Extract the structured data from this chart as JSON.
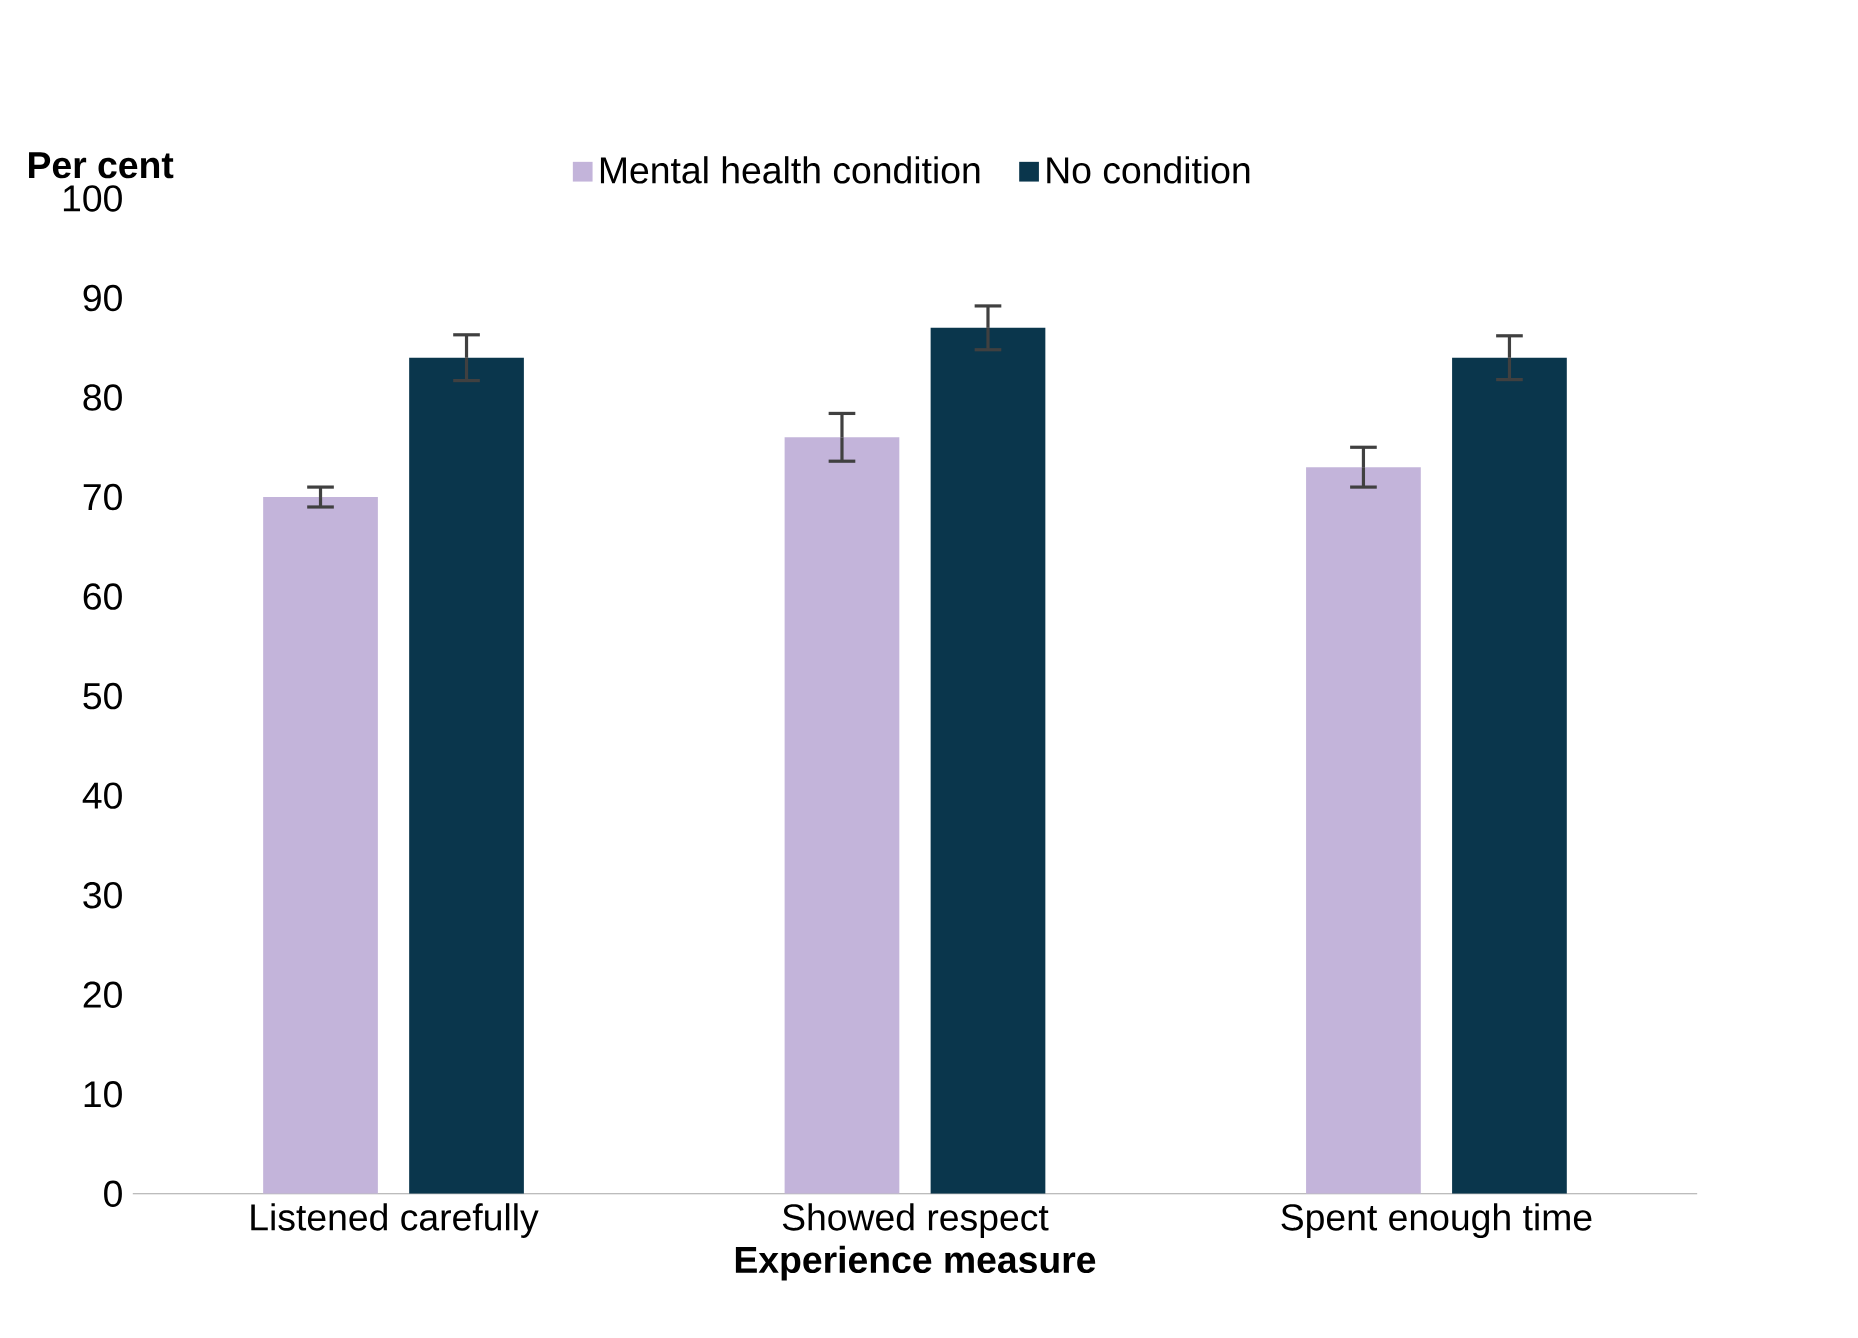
{
  "chart_data": {
    "type": "bar",
    "xlabel": "Experience measure",
    "ylabel": "Per cent",
    "categories": [
      "Listened carefully",
      "Showed respect",
      "Spent enough time"
    ],
    "series": [
      {
        "name": "Mental health condition",
        "color": "#c3b4da",
        "values": [
          70,
          76,
          73
        ],
        "errors": [
          1,
          2.4,
          2
        ]
      },
      {
        "name": "No condition",
        "color": "#0a364c",
        "values": [
          84,
          87,
          84
        ],
        "errors": [
          2.3,
          2.2,
          2.2
        ]
      }
    ],
    "ylim": [
      0,
      100
    ],
    "yticks": [
      0,
      10,
      20,
      30,
      40,
      50,
      60,
      70,
      80,
      90,
      100
    ],
    "grid": false,
    "legend": "top"
  }
}
